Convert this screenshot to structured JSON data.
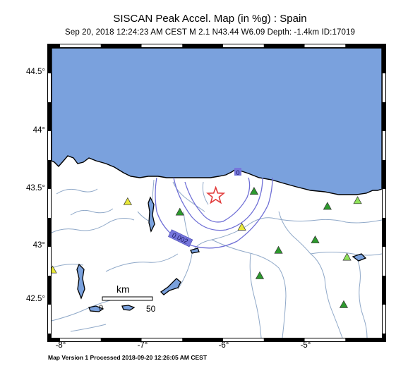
{
  "header": {
    "title": "SISCAN Peak Accel. Map (in %g) : Spain",
    "subtitle": "Sep 20, 2018 12:24:23 AM CEST   M 2.1   N43.44 W6.09   Depth: -1.4km   ID:17019"
  },
  "footer": "Map Version 1 Processed 2018-09-20 12:26:05 AM CEST",
  "axes": {
    "y_ticks": [
      "44.5°",
      "44°",
      "43.5°",
      "43°",
      "42.5°"
    ],
    "x_ticks": [
      "-8°",
      "-7°",
      "-6°",
      "-5°"
    ]
  },
  "contour_labels": [
    "0.002",
    "0"
  ],
  "scale_bar": {
    "unit": "km",
    "start": "0",
    "end": "50"
  },
  "colors": {
    "sea": "#7aa1dd",
    "land": "#ffffff",
    "river": "#8fa8c8",
    "contour": "#6f6fd6",
    "epicenter": "#e23b3b",
    "station_green": "#2d9a2d",
    "station_yellow": "#e8e83a",
    "station_lightgreen": "#8fe25a"
  },
  "epicenter": {
    "lat": 43.44,
    "lon": -6.09,
    "icon": "star-icon"
  },
  "stations": [
    {
      "lat": 43.39,
      "lon": -7.17,
      "type": "yellow"
    },
    {
      "lat": 43.3,
      "lon": -6.53,
      "type": "green"
    },
    {
      "lat": 43.48,
      "lon": -5.62,
      "type": "green"
    },
    {
      "lat": 43.17,
      "lon": -5.77,
      "type": "yellow"
    },
    {
      "lat": 42.97,
      "lon": -5.32,
      "type": "green"
    },
    {
      "lat": 43.06,
      "lon": -4.87,
      "type": "green"
    },
    {
      "lat": 43.35,
      "lon": -4.72,
      "type": "green"
    },
    {
      "lat": 43.4,
      "lon": -4.35,
      "type": "lightgreen"
    },
    {
      "lat": 42.91,
      "lon": -4.48,
      "type": "lightgreen"
    },
    {
      "lat": 42.75,
      "lon": -5.55,
      "type": "green"
    },
    {
      "lat": 42.5,
      "lon": -4.52,
      "type": "green"
    },
    {
      "lat": 42.8,
      "lon": -8.09,
      "type": "yellow"
    }
  ]
}
